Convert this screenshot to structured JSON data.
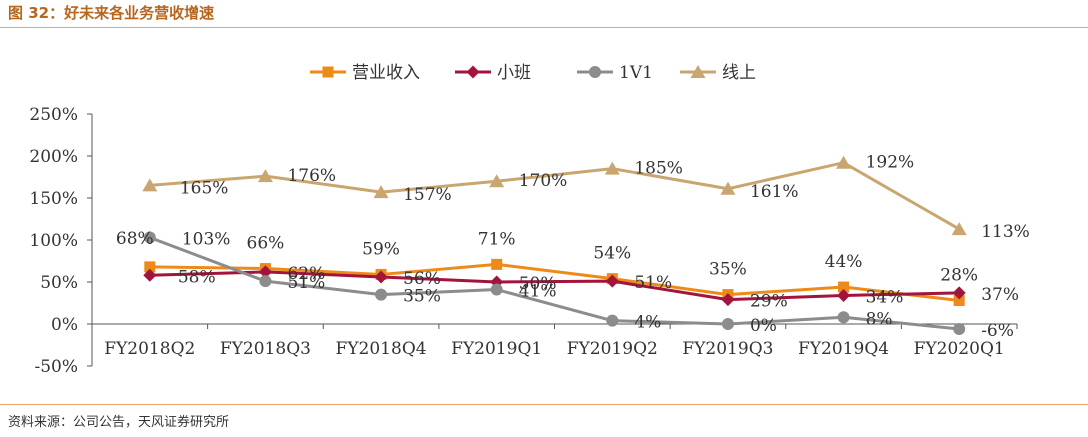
{
  "figure": {
    "title": "图 32：好未来各业务营收增速",
    "source": "资料来源：公司公告，天风证券研究所"
  },
  "colors": {
    "accent": "#e9a56b",
    "title": "#b8651d"
  },
  "chart_data": {
    "type": "line",
    "categories": [
      "FY2018Q2",
      "FY2018Q3",
      "FY2018Q4",
      "FY2019Q1",
      "FY2019Q2",
      "FY2019Q3",
      "FY2019Q4",
      "FY2020Q1"
    ],
    "ylim": [
      -50,
      250
    ],
    "yticks": [
      -50,
      0,
      50,
      100,
      150,
      200,
      250
    ],
    "ytick_labels": [
      "-50%",
      "0%",
      "50%",
      "100%",
      "150%",
      "200%",
      "250%"
    ],
    "legend_position": "top-center",
    "series": [
      {
        "name": "营业收入",
        "color": "#ee8a17",
        "marker": "square",
        "values": [
          68,
          66,
          59,
          71,
          54,
          35,
          44,
          28
        ],
        "labels": [
          "68%",
          "66%",
          "59%",
          "71%",
          "54%",
          "35%",
          "44%",
          "28%"
        ]
      },
      {
        "name": "小班",
        "color": "#a3143d",
        "marker": "diamond",
        "values": [
          58,
          62,
          56,
          50,
          51,
          29,
          34,
          37
        ],
        "labels": [
          "58%",
          "62%",
          "56%",
          "50%",
          "51%",
          "29%",
          "34%",
          "37%"
        ]
      },
      {
        "name": "1V1",
        "color": "#8c8c8c",
        "marker": "circle",
        "values": [
          103,
          51,
          35,
          41,
          4,
          0,
          8,
          -6
        ],
        "labels": [
          "103%",
          "51%",
          "35%",
          "41%",
          "4%",
          "0%",
          "8%",
          "-6%"
        ]
      },
      {
        "name": "线上",
        "color": "#c9a670",
        "marker": "triangle",
        "values": [
          165,
          176,
          157,
          170,
          185,
          161,
          192,
          113
        ],
        "labels": [
          "165%",
          "176%",
          "157%",
          "170%",
          "185%",
          "161%",
          "192%",
          "113%"
        ]
      }
    ]
  }
}
